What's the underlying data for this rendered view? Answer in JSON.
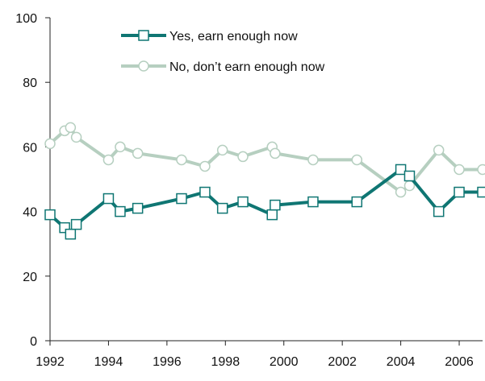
{
  "chart_data": {
    "type": "line",
    "title": "",
    "xlabel": "",
    "ylabel": "",
    "xlim": [
      1992,
      2006.8
    ],
    "ylim": [
      0,
      100
    ],
    "x_ticks": [
      1992,
      1994,
      1996,
      1998,
      2000,
      2002,
      2004,
      2006
    ],
    "y_ticks": [
      0,
      20,
      40,
      60,
      80,
      100
    ],
    "grid": false,
    "legend_position": "top-center",
    "series": [
      {
        "name": "Yes, earn enough now",
        "color": "#0f7673",
        "marker": "square",
        "points": [
          [
            1992.0,
            39
          ],
          [
            1992.5,
            35
          ],
          [
            1992.7,
            33
          ],
          [
            1992.9,
            36
          ],
          [
            1994.0,
            44
          ],
          [
            1994.4,
            40
          ],
          [
            1995.0,
            41
          ],
          [
            1996.5,
            44
          ],
          [
            1997.3,
            46
          ],
          [
            1997.9,
            41
          ],
          [
            1998.6,
            43
          ],
          [
            1999.6,
            39
          ],
          [
            1999.7,
            42
          ],
          [
            2001.0,
            43
          ],
          [
            2002.5,
            43
          ],
          [
            2004.0,
            53
          ],
          [
            2004.3,
            51
          ],
          [
            2005.3,
            40
          ],
          [
            2006.0,
            46
          ],
          [
            2006.8,
            46
          ]
        ]
      },
      {
        "name": "No, don’t earn enough now",
        "color": "#b6cfc0",
        "marker": "circle",
        "points": [
          [
            1992.0,
            61
          ],
          [
            1992.5,
            65
          ],
          [
            1992.7,
            66
          ],
          [
            1992.9,
            63
          ],
          [
            1994.0,
            56
          ],
          [
            1994.4,
            60
          ],
          [
            1995.0,
            58
          ],
          [
            1996.5,
            56
          ],
          [
            1997.3,
            54
          ],
          [
            1997.9,
            59
          ],
          [
            1998.6,
            57
          ],
          [
            1999.6,
            60
          ],
          [
            1999.7,
            58
          ],
          [
            2001.0,
            56
          ],
          [
            2002.5,
            56
          ],
          [
            2004.0,
            46
          ],
          [
            2004.3,
            48
          ],
          [
            2005.3,
            59
          ],
          [
            2006.0,
            53
          ],
          [
            2006.8,
            53
          ]
        ]
      }
    ]
  }
}
